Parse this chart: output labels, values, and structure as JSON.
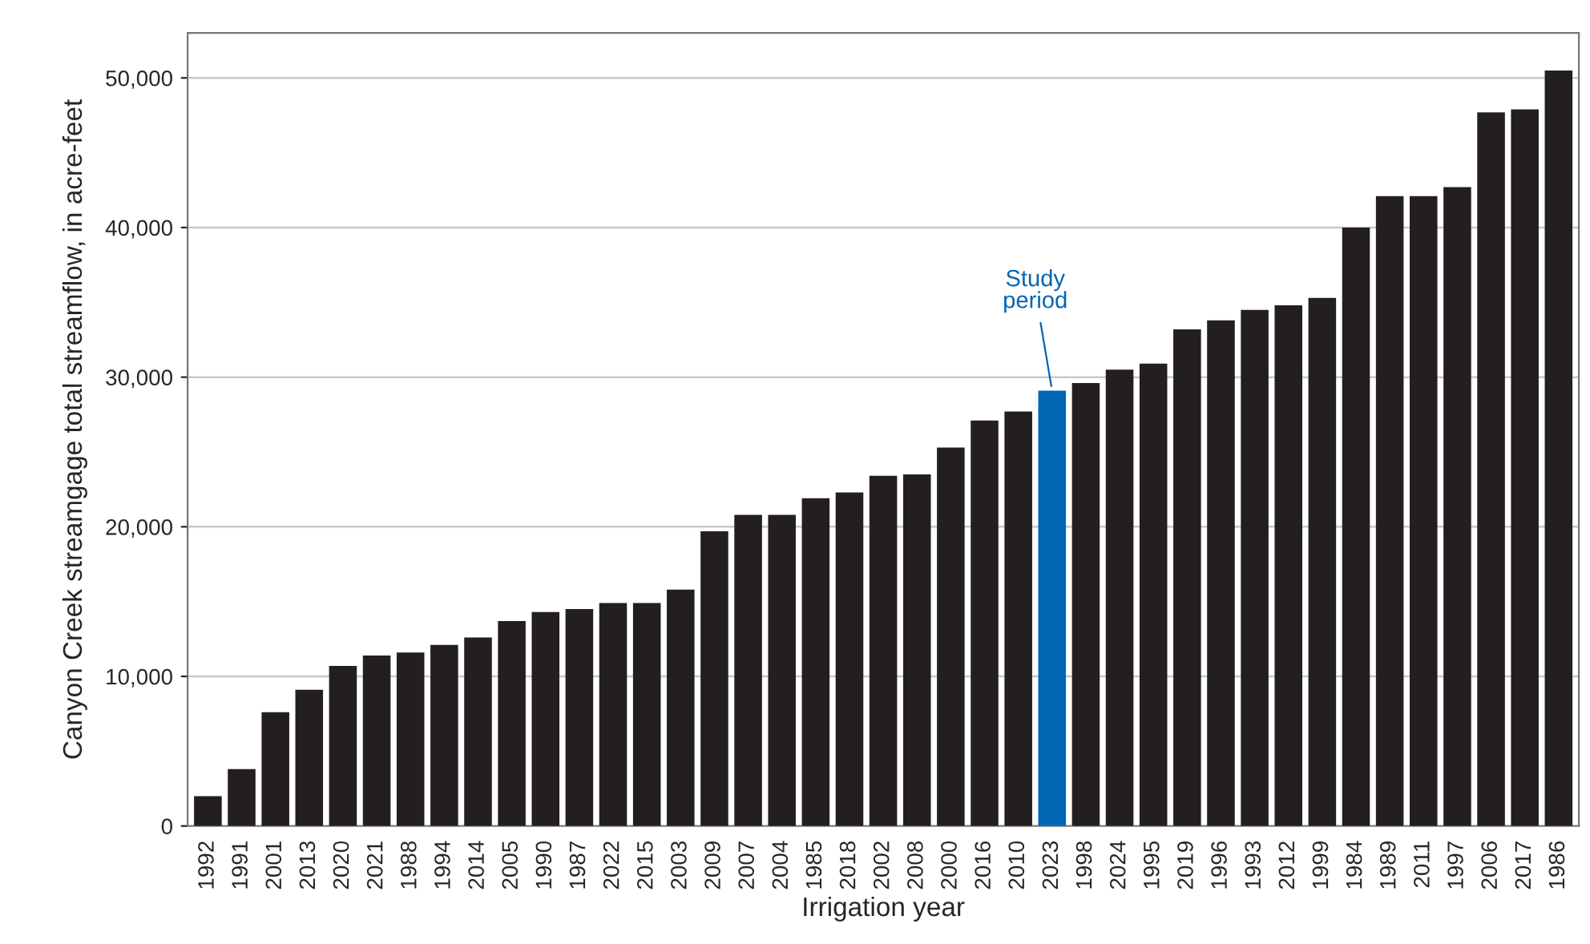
{
  "chart_data": {
    "type": "bar",
    "xlabel": "Irrigation year",
    "ylabel": "Canyon Creek streamgage total streamflow, in acre-feet",
    "categories": [
      "1992",
      "1991",
      "2001",
      "2013",
      "2020",
      "2021",
      "1988",
      "1994",
      "2014",
      "2005",
      "1990",
      "1987",
      "2022",
      "2015",
      "2003",
      "2009",
      "2007",
      "2004",
      "1985",
      "2018",
      "2002",
      "2008",
      "2000",
      "2016",
      "2010",
      "2023",
      "1998",
      "2024",
      "1995",
      "2019",
      "1996",
      "1993",
      "2012",
      "1999",
      "1984",
      "1989",
      "2011",
      "1997",
      "2006",
      "2017",
      "1986"
    ],
    "values": [
      2000,
      3800,
      7600,
      9100,
      10700,
      11400,
      11600,
      12100,
      12600,
      13700,
      14300,
      14500,
      14900,
      14900,
      15800,
      19700,
      20800,
      20800,
      21900,
      22300,
      23400,
      23500,
      25300,
      27100,
      27700,
      29100,
      29600,
      30500,
      30900,
      33200,
      33800,
      34500,
      34800,
      35300,
      40000,
      42100,
      42100,
      42700,
      47700,
      47900,
      50500
    ],
    "colors": [
      "#231f20",
      "#231f20",
      "#231f20",
      "#231f20",
      "#231f20",
      "#231f20",
      "#231f20",
      "#231f20",
      "#231f20",
      "#231f20",
      "#231f20",
      "#231f20",
      "#231f20",
      "#231f20",
      "#231f20",
      "#231f20",
      "#231f20",
      "#231f20",
      "#231f20",
      "#231f20",
      "#231f20",
      "#231f20",
      "#231f20",
      "#231f20",
      "#231f20",
      "#0066b3",
      "#231f20",
      "#231f20",
      "#231f20",
      "#231f20",
      "#231f20",
      "#231f20",
      "#231f20",
      "#231f20",
      "#231f20",
      "#231f20",
      "#231f20",
      "#231f20",
      "#231f20",
      "#231f20",
      "#231f20"
    ],
    "ylim": [
      0,
      53000
    ],
    "yticks": [
      0,
      {
        "value": 10000,
        "label": "10,000"
      },
      {
        "value": 20000,
        "label": "20,000"
      },
      {
        "value": 30000,
        "label": "30,000"
      },
      {
        "value": 40000,
        "label": "40,000"
      },
      {
        "value": 50000,
        "label": "50,000"
      }
    ],
    "grid": "y",
    "annotations": [
      {
        "text": "Study\nperiod",
        "x": "2023",
        "y": 29100
      }
    ]
  }
}
